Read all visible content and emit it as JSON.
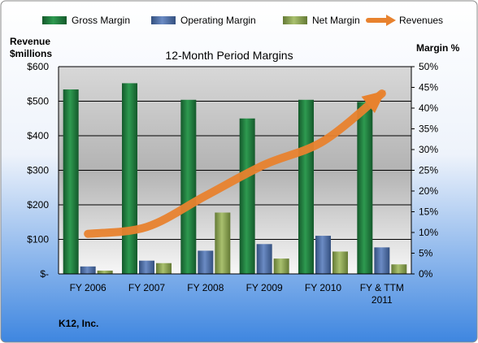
{
  "chart_data": {
    "type": "bar",
    "title": "12-Month Period Margins",
    "categories": [
      [
        "FY 2006"
      ],
      [
        "FY 2007"
      ],
      [
        "FY 2008"
      ],
      [
        "FY 2009"
      ],
      [
        "FY 2010"
      ],
      [
        "FY & TTM",
        "2011"
      ]
    ],
    "series": [
      {
        "name": "Gross Margin",
        "axis": "right",
        "color": "#1E7A3C",
        "values": [
          44.5,
          46,
          42,
          37.5,
          42,
          41.5
        ]
      },
      {
        "name": "Operating Margin",
        "axis": "right",
        "color": "#4F6EA8",
        "values": [
          1.8,
          3.2,
          5.6,
          7.2,
          9.2,
          6.4
        ]
      },
      {
        "name": "Net Margin",
        "axis": "right",
        "color": "#8FA85A",
        "values": [
          0.8,
          2.6,
          14.8,
          3.7,
          5.4,
          2.3
        ]
      },
      {
        "name": "Revenues",
        "axis": "left",
        "type": "line",
        "color": "#E8822E",
        "values": [
          116,
          136,
          226,
          316,
          384,
          522
        ]
      }
    ],
    "left_axis": {
      "label_lines": [
        "Revenue",
        "$millions"
      ],
      "ylim": [
        0,
        600
      ],
      "ticks": [
        0,
        100,
        200,
        300,
        400,
        500,
        600
      ],
      "tick_labels": [
        "$-",
        "$100",
        "$200",
        "$300",
        "$400",
        "$500",
        "$600"
      ]
    },
    "right_axis": {
      "label": "Margin %",
      "ylim": [
        0,
        50
      ],
      "ticks": [
        0,
        5,
        10,
        15,
        20,
        25,
        30,
        35,
        40,
        45,
        50
      ],
      "tick_labels": [
        "0%",
        "5%",
        "10%",
        "15%",
        "20%",
        "25%",
        "30%",
        "35%",
        "40%",
        "45%",
        "50%"
      ]
    },
    "grid": true,
    "legend": "top",
    "company": "K12, Inc."
  }
}
